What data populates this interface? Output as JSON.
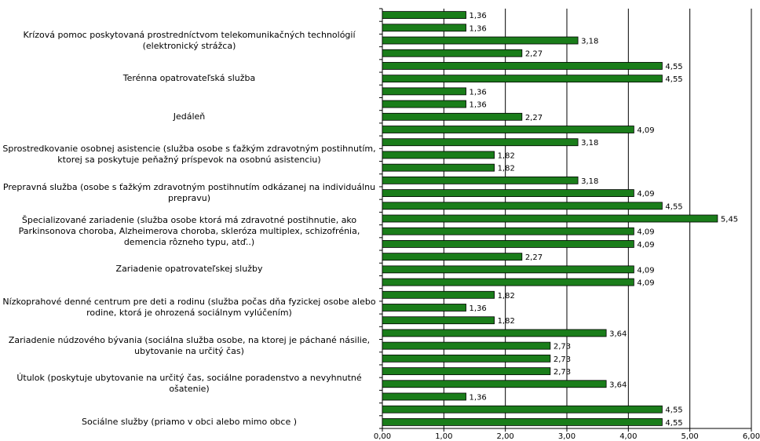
{
  "chart_data": {
    "type": "bar",
    "orientation": "horizontal",
    "xlim": [
      0,
      6
    ],
    "x_ticks": [
      "0,00",
      "1,00",
      "2,00",
      "3,00",
      "4,00",
      "5,00",
      "6,00"
    ],
    "grid": true,
    "legend": "none",
    "bar_color": "#1a7d1a",
    "bar_stroke": "#000000",
    "values": [
      1.36,
      1.36,
      3.18,
      2.27,
      4.55,
      4.55,
      1.36,
      1.36,
      2.27,
      4.09,
      3.18,
      1.82,
      1.82,
      3.18,
      4.09,
      4.55,
      5.45,
      4.09,
      4.09,
      2.27,
      4.09,
      4.09,
      1.82,
      1.36,
      1.82,
      3.64,
      2.73,
      2.73,
      2.73,
      3.64,
      1.36,
      4.55,
      4.55
    ],
    "value_labels": [
      "1,36",
      "1,36",
      "3,18",
      "2,27",
      "4,55",
      "4,55",
      "1,36",
      "1,36",
      "2,27",
      "4,09",
      "3,18",
      "1,82",
      "1,82",
      "3,18",
      "4,09",
      "4,55",
      "5,45",
      "4,09",
      "4,09",
      "2,27",
      "4,09",
      "4,09",
      "1,82",
      "1,36",
      "1,82",
      "3,64",
      "2,73",
      "2,73",
      "2,73",
      "3,64",
      "1,36",
      "4,55",
      "4,55"
    ],
    "category_labels": [
      {
        "row": 2,
        "text": "Krízová pomoc poskytovaná prostredníctvom telekomunikačných technológií (elektronický strážca)"
      },
      {
        "row": 5,
        "text": "Terénna opatrovateľská služba"
      },
      {
        "row": 8,
        "text": "Jedáleň"
      },
      {
        "row": 11,
        "text": "Sprostredkovanie osobnej asistencie (služba osobe s ťažkým zdravotným postihnutím, ktorej sa poskytuje peňažný príspevok na osobnú asistenciu)"
      },
      {
        "row": 14,
        "text": "Prepravná služba (osobe s ťažkým zdravotným postihnutím odkázanej na individuálnu prepravu)"
      },
      {
        "row": 17,
        "text": "Špecializované zariadenie (služba osobe ktorá má zdravotné postihnutie, ako Parkinsonova choroba, Alzheimerova choroba, skleróza multiplex, schizofrénia, demencia rôzneho typu, atď..)"
      },
      {
        "row": 20,
        "text": "Zariadenie opatrovateľskej služby"
      },
      {
        "row": 23,
        "text": "Nízkoprahové denné centrum pre deti a rodinu (služba počas dňa fyzickej osobe alebo rodine, ktorá je ohrozená sociálnym vylúčením)"
      },
      {
        "row": 26,
        "text": "Zariadenie núdzového bývania (sociálna služba osobe, na ktorej je páchané násilie, ubytovanie na určitý čas)"
      },
      {
        "row": 29,
        "text": "Útulok (poskytuje ubytovanie na určitý čas, sociálne poradenstvo a nevyhnutné ošatenie)"
      },
      {
        "row": 32,
        "text": "Sociálne služby (priamo v obci alebo mimo obce )"
      }
    ]
  }
}
